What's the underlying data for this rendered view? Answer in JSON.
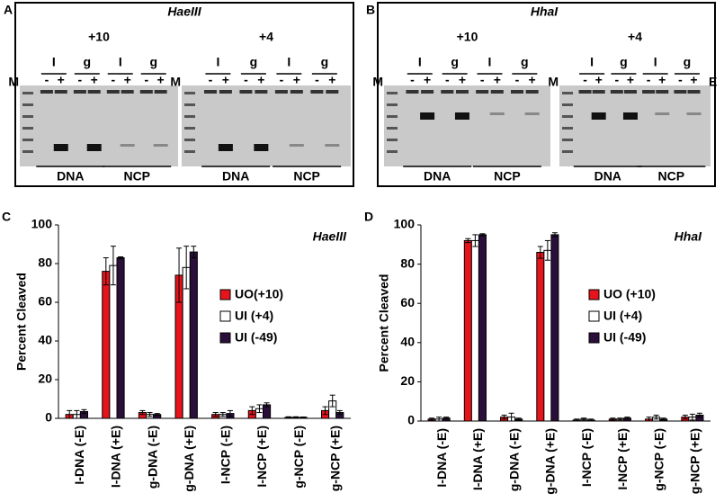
{
  "gels": [
    {
      "letter": "A",
      "enzyme": "HaeIII",
      "marker": "M",
      "signs": [
        "-",
        "+"
      ],
      "lanes": [
        "I",
        "g"
      ],
      "sections": [
        "DNA",
        "NCP"
      ],
      "groups": [
        "+10",
        "+4"
      ]
    },
    {
      "letter": "B",
      "enzyme": "HhaI",
      "marker": "M",
      "signs": [
        "-",
        "+"
      ],
      "lanes": [
        "I",
        "g"
      ],
      "sections": [
        "DNA",
        "NCP"
      ],
      "groups": [
        "+10",
        "+4"
      ],
      "enzyme_lane": "E"
    }
  ],
  "chart_data": [
    {
      "type": "bar",
      "letter": "C",
      "title": "HaeIII",
      "y_label": "Percent Cleaved",
      "categories": [
        "I-DNA (-E)",
        "I-DNA (+E)",
        "g-DNA (-E)",
        "g-DNA (+E)",
        "I-NCP (-E)",
        "I-NCP (+E)",
        "g-NCP (-E)",
        "g-NCP (+E)"
      ],
      "series": [
        {
          "name": "UO(+10)",
          "color": "#e8141b",
          "values": [
            2,
            76,
            3,
            74,
            2,
            4,
            0.5,
            4
          ],
          "errors": [
            2,
            7,
            1,
            14,
            1,
            2,
            0.3,
            2
          ]
        },
        {
          "name": "UI (+4)",
          "color": "#ffffff",
          "values": [
            2,
            79,
            2,
            78,
            2,
            5,
            0.5,
            9
          ],
          "errors": [
            2,
            10,
            1,
            11,
            1,
            2,
            0.3,
            3
          ]
        },
        {
          "name": "UI (-49)",
          "color": "#2a0f3a",
          "values": [
            3.5,
            83,
            2,
            86,
            2.5,
            7,
            0.5,
            3
          ],
          "errors": [
            1,
            0.5,
            0.5,
            3,
            1.5,
            1,
            0.2,
            1
          ]
        }
      ],
      "ylim": [
        0,
        100
      ],
      "yticks": [
        0,
        20,
        40,
        60,
        80,
        100
      ],
      "legend": "right"
    },
    {
      "type": "bar",
      "letter": "D",
      "title": "HhaI",
      "y_label": "Percent Cleaved",
      "categories": [
        "I-DNA (-E)",
        "I-DNA (+E)",
        "g-DNA (-E)",
        "g-DNA (+E)",
        "I-NCP (-E)",
        "I-NCP (+E)",
        "g-NCP (-E)",
        "g-NCP (+E)"
      ],
      "series": [
        {
          "name": "UO (+10)",
          "color": "#e8141b",
          "values": [
            1,
            92,
            2,
            86,
            0.5,
            1,
            1,
            2
          ],
          "errors": [
            0.5,
            1,
            1,
            3,
            0.5,
            0.5,
            1,
            1
          ]
        },
        {
          "name": "UI (+4)",
          "color": "#ffffff",
          "values": [
            1,
            92,
            2,
            87,
            1,
            1,
            2,
            2
          ],
          "errors": [
            1,
            3,
            2,
            5,
            0.5,
            0.5,
            1,
            1.5
          ]
        },
        {
          "name": "UI (-49)",
          "color": "#2a0f3a",
          "values": [
            1.5,
            95,
            1,
            95,
            0.5,
            1.5,
            1,
            3
          ],
          "errors": [
            0.5,
            0.5,
            0.5,
            1,
            0.5,
            0.5,
            0.5,
            1
          ]
        }
      ],
      "ylim": [
        0,
        100
      ],
      "yticks": [
        0,
        20,
        40,
        60,
        80,
        100
      ],
      "legend": "right"
    }
  ]
}
